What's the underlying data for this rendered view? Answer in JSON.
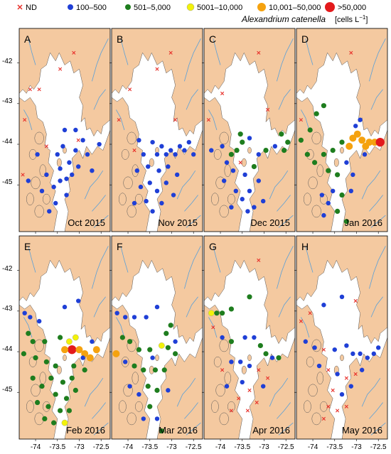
{
  "legend": {
    "items": [
      {
        "label": "ND",
        "marker": "cross",
        "color": "#e8302a"
      },
      {
        "label": "100–500",
        "marker": "circle",
        "color": "#1f3fd6"
      },
      {
        "label": "501–5,000",
        "marker": "circle",
        "color": "#1e7d1e"
      },
      {
        "label": "5001–10,000",
        "marker": "circle",
        "color": "#f2f20a"
      },
      {
        "label": "10,001–50,000",
        "marker": "circle",
        "color": "#f5a20f"
      },
      {
        "label": ">50,000",
        "marker": "circle",
        "color": "#e31a1c"
      }
    ],
    "species": "Alexandrium catenella",
    "units": "[cells L",
    "units_sup": "−1",
    "units_close": "]"
  },
  "axes": {
    "y_ticks": [
      "-42",
      "-43",
      "-44",
      "-45"
    ],
    "x_ticks": [
      "-74",
      "-73.5",
      "-73",
      "-72.5"
    ]
  },
  "colors": {
    "land": "#f4c9a0",
    "water": "#ffffff",
    "rivers": "#5aa0d8",
    "coast": "#555555"
  },
  "panels": [
    {
      "letter": "A",
      "month": "Oct 2015",
      "stations": [
        [
          0.04,
          0.72,
          "nd"
        ],
        [
          0.06,
          0.45,
          "nd"
        ],
        [
          0.12,
          0.3,
          "nd"
        ],
        [
          0.22,
          0.3,
          "nd"
        ],
        [
          0.45,
          0.2,
          "nd"
        ],
        [
          0.6,
          0.12,
          "nd"
        ],
        [
          0.65,
          0.55,
          "nd"
        ],
        [
          0.3,
          0.58,
          "nd"
        ],
        [
          0.5,
          0.5,
          "b"
        ],
        [
          0.62,
          0.6,
          "b"
        ],
        [
          0.88,
          0.57,
          "b"
        ],
        [
          0.55,
          0.66,
          "b"
        ],
        [
          0.45,
          0.69,
          "b"
        ],
        [
          0.38,
          0.78,
          "b"
        ],
        [
          0.52,
          0.74,
          "b"
        ],
        [
          0.4,
          0.86,
          "b"
        ],
        [
          0.33,
          0.9,
          "b"
        ],
        [
          0.7,
          0.55,
          "b"
        ],
        [
          0.1,
          0.75,
          "b"
        ],
        [
          0.25,
          0.8,
          "b"
        ],
        [
          0.65,
          0.68,
          "b"
        ],
        [
          0.52,
          0.82,
          "b"
        ],
        [
          0.45,
          0.75,
          "b"
        ],
        [
          0.58,
          0.72,
          "b"
        ],
        [
          0.62,
          0.5,
          "b"
        ],
        [
          0.3,
          0.72,
          "b"
        ],
        [
          0.42,
          0.62,
          "b"
        ],
        [
          0.48,
          0.58,
          "b"
        ],
        [
          0.8,
          0.7,
          "b"
        ],
        [
          0.75,
          0.62,
          "b"
        ],
        [
          0.2,
          0.62,
          "b"
        ]
      ]
    },
    {
      "letter": "B",
      "month": "Nov 2015",
      "stations": [
        [
          0.08,
          0.45,
          "nd"
        ],
        [
          0.2,
          0.3,
          "nd"
        ],
        [
          0.5,
          0.2,
          "nd"
        ],
        [
          0.65,
          0.12,
          "nd"
        ],
        [
          0.7,
          0.45,
          "nd"
        ],
        [
          0.25,
          0.6,
          "nd"
        ],
        [
          0.3,
          0.55,
          "b"
        ],
        [
          0.35,
          0.62,
          "b"
        ],
        [
          0.45,
          0.56,
          "b"
        ],
        [
          0.5,
          0.62,
          "b"
        ],
        [
          0.55,
          0.58,
          "b"
        ],
        [
          0.6,
          0.62,
          "b"
        ],
        [
          0.65,
          0.6,
          "b"
        ],
        [
          0.7,
          0.62,
          "b"
        ],
        [
          0.75,
          0.58,
          "b"
        ],
        [
          0.8,
          0.6,
          "b"
        ],
        [
          0.85,
          0.56,
          "b"
        ],
        [
          0.9,
          0.62,
          "b"
        ],
        [
          0.28,
          0.7,
          "b"
        ],
        [
          0.4,
          0.68,
          "b"
        ],
        [
          0.52,
          0.7,
          "b"
        ],
        [
          0.62,
          0.68,
          "b"
        ],
        [
          0.72,
          0.72,
          "b"
        ],
        [
          0.42,
          0.76,
          "b"
        ],
        [
          0.5,
          0.8,
          "b"
        ],
        [
          0.38,
          0.85,
          "b"
        ],
        [
          0.45,
          0.9,
          "b"
        ],
        [
          0.55,
          0.86,
          "b"
        ],
        [
          0.6,
          0.76,
          "b"
        ],
        [
          0.32,
          0.78,
          "b"
        ],
        [
          0.68,
          0.82,
          "b"
        ],
        [
          0.25,
          0.86,
          "b"
        ]
      ]
    },
    {
      "letter": "C",
      "month": "Dec 2015",
      "stations": [
        [
          0.05,
          0.45,
          "nd"
        ],
        [
          0.2,
          0.32,
          "nd"
        ],
        [
          0.6,
          0.12,
          "nd"
        ],
        [
          0.7,
          0.4,
          "nd"
        ],
        [
          0.4,
          0.66,
          "nd"
        ],
        [
          0.08,
          0.6,
          "b"
        ],
        [
          0.2,
          0.58,
          "b"
        ],
        [
          0.25,
          0.66,
          "b"
        ],
        [
          0.3,
          0.62,
          "g"
        ],
        [
          0.36,
          0.6,
          "g"
        ],
        [
          0.42,
          0.56,
          "g"
        ],
        [
          0.5,
          0.54,
          "b"
        ],
        [
          0.6,
          0.62,
          "b"
        ],
        [
          0.68,
          0.6,
          "g"
        ],
        [
          0.78,
          0.58,
          "b"
        ],
        [
          0.88,
          0.6,
          "g"
        ],
        [
          0.92,
          0.56,
          "g"
        ],
        [
          0.85,
          0.52,
          "g"
        ],
        [
          0.4,
          0.52,
          "g"
        ],
        [
          0.32,
          0.7,
          "b"
        ],
        [
          0.45,
          0.72,
          "b"
        ],
        [
          0.55,
          0.68,
          "g"
        ],
        [
          0.6,
          0.75,
          "b"
        ],
        [
          0.5,
          0.8,
          "b"
        ],
        [
          0.42,
          0.84,
          "b"
        ],
        [
          0.35,
          0.8,
          "b"
        ],
        [
          0.48,
          0.9,
          "b"
        ],
        [
          0.65,
          0.85,
          "b"
        ],
        [
          0.3,
          0.88,
          "b"
        ],
        [
          0.55,
          0.88,
          "b"
        ],
        [
          0.22,
          0.75,
          "b"
        ]
      ]
    },
    {
      "letter": "D",
      "month": "Jan 2016",
      "stations": [
        [
          0.05,
          0.45,
          "nd"
        ],
        [
          0.6,
          0.12,
          "nd"
        ],
        [
          0.3,
          0.38,
          "g"
        ],
        [
          0.22,
          0.42,
          "g"
        ],
        [
          0.15,
          0.5,
          "g"
        ],
        [
          0.05,
          0.55,
          "g"
        ],
        [
          0.12,
          0.62,
          "g"
        ],
        [
          0.2,
          0.66,
          "g"
        ],
        [
          0.3,
          0.62,
          "g"
        ],
        [
          0.4,
          0.6,
          "g"
        ],
        [
          0.5,
          0.56,
          "g"
        ],
        [
          0.58,
          0.58,
          "o"
        ],
        [
          0.62,
          0.54,
          "o"
        ],
        [
          0.67,
          0.52,
          "o"
        ],
        [
          0.72,
          0.55,
          "o"
        ],
        [
          0.76,
          0.58,
          "o"
        ],
        [
          0.8,
          0.56,
          "o"
        ],
        [
          0.86,
          0.56,
          "o"
        ],
        [
          0.92,
          0.56,
          "r"
        ],
        [
          0.7,
          0.45,
          "b"
        ],
        [
          0.65,
          0.48,
          "b"
        ],
        [
          0.75,
          0.62,
          "b"
        ],
        [
          0.35,
          0.7,
          "g"
        ],
        [
          0.45,
          0.72,
          "g"
        ],
        [
          0.55,
          0.66,
          "b"
        ],
        [
          0.62,
          0.72,
          "b"
        ],
        [
          0.4,
          0.8,
          "b"
        ],
        [
          0.5,
          0.82,
          "g"
        ],
        [
          0.35,
          0.86,
          "b"
        ],
        [
          0.45,
          0.9,
          "g"
        ],
        [
          0.55,
          0.95,
          "g"
        ],
        [
          0.28,
          0.82,
          "b"
        ],
        [
          0.6,
          0.8,
          "b"
        ],
        [
          0.3,
          0.92,
          "b"
        ]
      ]
    },
    {
      "letter": "E",
      "month": "Feb 2016",
      "stations": [
        [
          0.06,
          0.38,
          "b"
        ],
        [
          0.12,
          0.4,
          "b"
        ],
        [
          0.22,
          0.42,
          "b"
        ],
        [
          0.5,
          0.35,
          "b"
        ],
        [
          0.65,
          0.32,
          "b"
        ],
        [
          0.1,
          0.48,
          "g"
        ],
        [
          0.15,
          0.52,
          "g"
        ],
        [
          0.28,
          0.52,
          "g"
        ],
        [
          0.45,
          0.5,
          "g"
        ],
        [
          0.55,
          0.52,
          "y"
        ],
        [
          0.62,
          0.5,
          "y"
        ],
        [
          0.58,
          0.56,
          "r"
        ],
        [
          0.66,
          0.56,
          "o"
        ],
        [
          0.72,
          0.58,
          "o"
        ],
        [
          0.78,
          0.6,
          "o"
        ],
        [
          0.85,
          0.56,
          "o"
        ],
        [
          0.5,
          0.56,
          "o"
        ],
        [
          0.05,
          0.58,
          "g"
        ],
        [
          0.18,
          0.6,
          "g"
        ],
        [
          0.3,
          0.62,
          "g"
        ],
        [
          0.4,
          0.64,
          "g"
        ],
        [
          0.6,
          0.64,
          "g"
        ],
        [
          0.72,
          0.66,
          "g"
        ],
        [
          0.35,
          0.7,
          "g"
        ],
        [
          0.48,
          0.72,
          "g"
        ],
        [
          0.58,
          0.7,
          "g"
        ],
        [
          0.25,
          0.74,
          "g"
        ],
        [
          0.4,
          0.78,
          "g"
        ],
        [
          0.52,
          0.8,
          "g"
        ],
        [
          0.32,
          0.84,
          "g"
        ],
        [
          0.45,
          0.86,
          "g"
        ],
        [
          0.38,
          0.92,
          "g"
        ],
        [
          0.5,
          0.92,
          "y"
        ],
        [
          0.28,
          0.9,
          "g"
        ],
        [
          0.62,
          0.76,
          "g"
        ],
        [
          0.2,
          0.82,
          "g"
        ],
        [
          0.55,
          0.86,
          "g"
        ],
        [
          0.15,
          0.7,
          "g"
        ],
        [
          0.7,
          0.6,
          "b"
        ],
        [
          0.8,
          0.52,
          "b"
        ]
      ]
    },
    {
      "letter": "F",
      "month": "Mar 2016",
      "stations": [
        [
          0.06,
          0.38,
          "b"
        ],
        [
          0.15,
          0.4,
          "b"
        ],
        [
          0.25,
          0.4,
          "b"
        ],
        [
          0.5,
          0.35,
          "b"
        ],
        [
          0.38,
          0.4,
          "b"
        ],
        [
          0.05,
          0.58,
          "o"
        ],
        [
          0.12,
          0.5,
          "g"
        ],
        [
          0.2,
          0.52,
          "g"
        ],
        [
          0.3,
          0.56,
          "g"
        ],
        [
          0.42,
          0.56,
          "g"
        ],
        [
          0.55,
          0.54,
          "y"
        ],
        [
          0.62,
          0.55,
          "g"
        ],
        [
          0.7,
          0.58,
          "g"
        ],
        [
          0.6,
          0.48,
          "g"
        ],
        [
          0.65,
          0.44,
          "g"
        ],
        [
          0.25,
          0.64,
          "g"
        ],
        [
          0.35,
          0.66,
          "g"
        ],
        [
          0.48,
          0.66,
          "g"
        ],
        [
          0.58,
          0.66,
          "g"
        ],
        [
          0.4,
          0.74,
          "g"
        ],
        [
          0.5,
          0.76,
          "g"
        ],
        [
          0.3,
          0.78,
          "b"
        ],
        [
          0.42,
          0.84,
          "g"
        ],
        [
          0.35,
          0.9,
          "b"
        ],
        [
          0.5,
          0.9,
          "b"
        ],
        [
          0.55,
          0.96,
          "g"
        ],
        [
          0.2,
          0.74,
          "b"
        ],
        [
          0.62,
          0.76,
          "b"
        ],
        [
          0.7,
          0.52,
          "b"
        ],
        [
          0.15,
          0.62,
          "b"
        ],
        [
          0.45,
          0.6,
          "b"
        ]
      ]
    },
    {
      "letter": "G",
      "month": "Apr 2016",
      "stations": [
        [
          0.08,
          0.38,
          "y"
        ],
        [
          0.14,
          0.38,
          "g"
        ],
        [
          0.2,
          0.38,
          "g"
        ],
        [
          0.3,
          0.36,
          "g"
        ],
        [
          0.5,
          0.3,
          "g"
        ],
        [
          0.6,
          0.12,
          "nd"
        ],
        [
          0.1,
          0.45,
          "nd"
        ],
        [
          0.2,
          0.5,
          "b"
        ],
        [
          0.3,
          0.52,
          "g"
        ],
        [
          0.45,
          0.5,
          "b"
        ],
        [
          0.55,
          0.5,
          "b"
        ],
        [
          0.62,
          0.54,
          "g"
        ],
        [
          0.68,
          0.58,
          "g"
        ],
        [
          0.75,
          0.6,
          "b"
        ],
        [
          0.82,
          0.6,
          "g"
        ],
        [
          0.3,
          0.62,
          "b"
        ],
        [
          0.4,
          0.62,
          "b"
        ],
        [
          0.5,
          0.64,
          "b"
        ],
        [
          0.6,
          0.66,
          "nd"
        ],
        [
          0.42,
          0.72,
          "b"
        ],
        [
          0.5,
          0.76,
          "nd"
        ],
        [
          0.38,
          0.8,
          "nd"
        ],
        [
          0.48,
          0.86,
          "nd"
        ],
        [
          0.58,
          0.82,
          "nd"
        ],
        [
          0.3,
          0.86,
          "nd"
        ],
        [
          0.25,
          0.74,
          "b"
        ],
        [
          0.65,
          0.74,
          "b"
        ],
        [
          0.2,
          0.66,
          "nd"
        ],
        [
          0.7,
          0.7,
          "nd"
        ]
      ]
    },
    {
      "letter": "H",
      "month": "May 2016",
      "stations": [
        [
          0.05,
          0.42,
          "nd"
        ],
        [
          0.15,
          0.38,
          "nd"
        ],
        [
          0.3,
          0.34,
          "b"
        ],
        [
          0.5,
          0.3,
          "b"
        ],
        [
          0.65,
          0.32,
          "nd"
        ],
        [
          0.1,
          0.52,
          "b"
        ],
        [
          0.2,
          0.55,
          "b"
        ],
        [
          0.3,
          0.56,
          "nd"
        ],
        [
          0.42,
          0.56,
          "b"
        ],
        [
          0.55,
          0.54,
          "b"
        ],
        [
          0.62,
          0.58,
          "b"
        ],
        [
          0.7,
          0.58,
          "b"
        ],
        [
          0.78,
          0.6,
          "b"
        ],
        [
          0.85,
          0.58,
          "b"
        ],
        [
          0.9,
          0.55,
          "b"
        ],
        [
          0.25,
          0.64,
          "b"
        ],
        [
          0.35,
          0.66,
          "nd"
        ],
        [
          0.45,
          0.68,
          "b"
        ],
        [
          0.55,
          0.7,
          "nd"
        ],
        [
          0.65,
          0.68,
          "nd"
        ],
        [
          0.4,
          0.76,
          "nd"
        ],
        [
          0.5,
          0.78,
          "b"
        ],
        [
          0.35,
          0.84,
          "nd"
        ],
        [
          0.45,
          0.86,
          "nd"
        ],
        [
          0.55,
          0.84,
          "nd"
        ],
        [
          0.6,
          0.74,
          "b"
        ],
        [
          0.3,
          0.9,
          "nd"
        ],
        [
          0.72,
          0.66,
          "b"
        ]
      ]
    }
  ]
}
